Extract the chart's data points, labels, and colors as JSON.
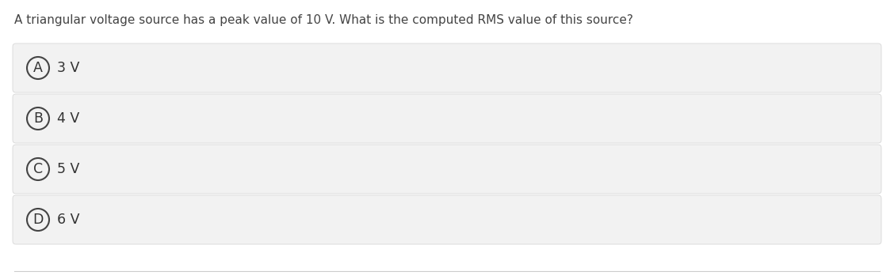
{
  "question": "A triangular voltage source has a peak value of 10 V. What is the computed RMS value of this source?",
  "options": [
    {
      "label": "A",
      "text": "3 V"
    },
    {
      "label": "B",
      "text": "4 V"
    },
    {
      "label": "C",
      "text": "5 V"
    },
    {
      "label": "D",
      "text": "6 V"
    }
  ],
  "bg_color": "#ffffff",
  "option_bg_color": "#f2f2f2",
  "option_border_color": "#d8d8d8",
  "question_color": "#444444",
  "option_text_color": "#333333",
  "circle_edge_color": "#444444",
  "question_fontsize": 11.0,
  "option_fontsize": 12.5,
  "label_fontsize": 12.5,
  "bottom_line_color": "#cccccc",
  "fig_width": 11.28,
  "fig_height": 3.53,
  "dpi": 100
}
